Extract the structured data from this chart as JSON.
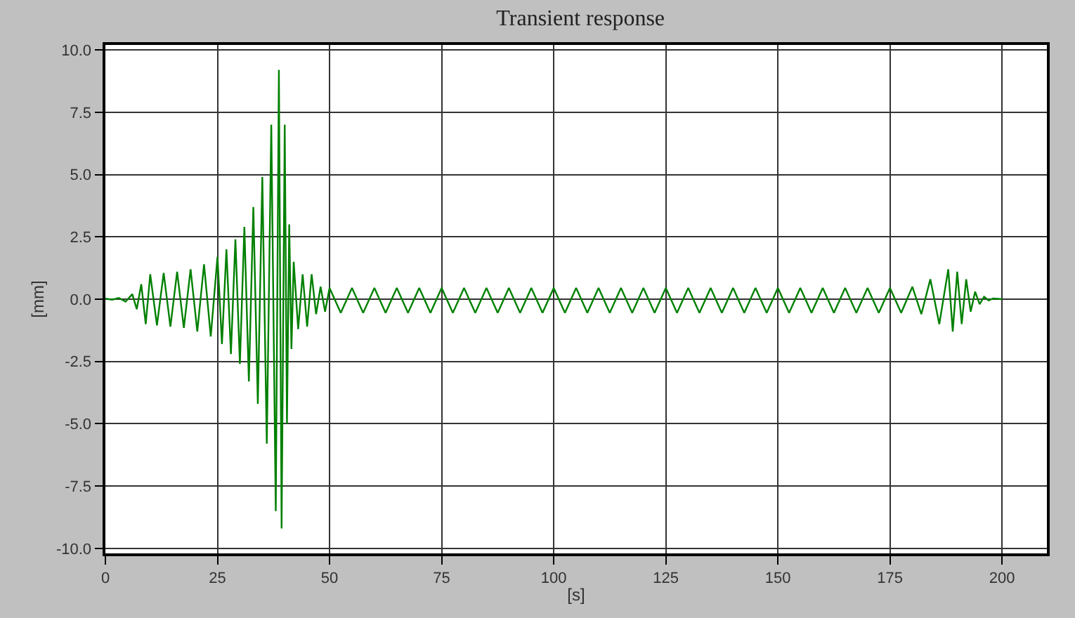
{
  "chart_data": {
    "type": "line",
    "title": "Transient response",
    "xlabel": "[s]",
    "ylabel": "[mm]",
    "x": [
      0,
      1.5,
      3,
      4.5,
      6,
      7,
      8,
      9,
      10,
      11.5,
      13,
      14.5,
      16,
      17.5,
      19,
      20.5,
      22,
      23.5,
      25,
      26,
      27,
      28,
      29,
      30,
      31,
      32,
      33,
      34,
      35,
      36,
      37,
      38,
      38.7,
      39.3,
      40,
      40.5,
      41,
      41.5,
      42,
      43,
      44,
      45,
      46,
      47,
      48,
      49,
      50,
      52.5,
      55,
      57.5,
      60,
      62.5,
      65,
      67.5,
      70,
      72.5,
      75,
      77.5,
      80,
      82.5,
      85,
      87.5,
      90,
      92.5,
      95,
      97.5,
      100,
      102.5,
      105,
      107.5,
      110,
      112.5,
      115,
      117.5,
      120,
      122.5,
      125,
      127.5,
      130,
      132.5,
      135,
      137.5,
      140,
      142.5,
      145,
      147.5,
      150,
      152.5,
      155,
      157.5,
      160,
      162.5,
      165,
      167.5,
      170,
      172.5,
      175,
      177.5,
      180,
      182,
      184,
      186,
      188,
      189,
      190,
      191,
      192,
      193,
      194,
      195,
      196,
      197,
      198,
      200
    ],
    "series": [
      {
        "color": "#008000",
        "values": [
          0.02,
          -0.02,
          0.05,
          -0.1,
          0.2,
          -0.4,
          0.6,
          -1.0,
          1.0,
          -1.05,
          1.05,
          -1.1,
          1.1,
          -1.15,
          1.2,
          -1.3,
          1.4,
          -1.5,
          1.7,
          -1.8,
          2.0,
          -2.2,
          2.4,
          -2.6,
          2.9,
          -3.3,
          3.7,
          -4.2,
          4.9,
          -5.8,
          7.0,
          -8.5,
          9.2,
          -9.2,
          7.0,
          -5.0,
          3.0,
          -2.0,
          1.5,
          -1.2,
          1.0,
          -1.1,
          1.0,
          -0.6,
          0.5,
          -0.5,
          0.45,
          -0.55,
          0.45,
          -0.55,
          0.45,
          -0.55,
          0.45,
          -0.55,
          0.45,
          -0.55,
          0.45,
          -0.55,
          0.45,
          -0.55,
          0.45,
          -0.55,
          0.45,
          -0.55,
          0.45,
          -0.55,
          0.45,
          -0.55,
          0.45,
          -0.55,
          0.45,
          -0.55,
          0.45,
          -0.55,
          0.45,
          -0.55,
          0.45,
          -0.55,
          0.45,
          -0.55,
          0.45,
          -0.55,
          0.45,
          -0.55,
          0.45,
          -0.55,
          0.45,
          -0.55,
          0.45,
          -0.55,
          0.45,
          -0.55,
          0.45,
          -0.55,
          0.45,
          -0.55,
          0.45,
          -0.55,
          0.5,
          -0.6,
          0.8,
          -1.0,
          1.2,
          -1.3,
          1.1,
          -1.0,
          0.8,
          -0.5,
          0.3,
          -0.2,
          0.1,
          -0.05,
          0.03,
          0
        ]
      }
    ],
    "xlim": [
      0,
      210
    ],
    "xticks": [
      0,
      25,
      50,
      75,
      100,
      125,
      150,
      175,
      200
    ],
    "ylim": [
      -10.2,
      10.2
    ],
    "yticks": [
      {
        "value": 10,
        "label": "10.0"
      },
      {
        "value": 7.5,
        "label": "7.5"
      },
      {
        "value": 5,
        "label": "5.0"
      },
      {
        "value": 2.5,
        "label": "2.5"
      },
      {
        "value": 0,
        "label": "0.0"
      },
      {
        "value": -2.5,
        "label": "-2.5"
      },
      {
        "value": -5,
        "label": "-5.0"
      },
      {
        "value": -7.5,
        "label": "-7.5"
      },
      {
        "value": -10,
        "label": "-10.0"
      }
    ],
    "grid": true,
    "marker": "none",
    "line_style": "solid"
  }
}
